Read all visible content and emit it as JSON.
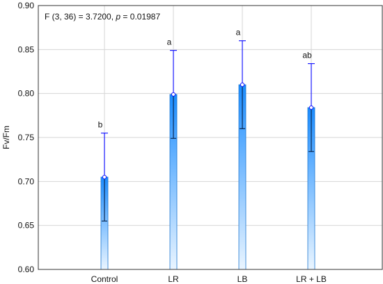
{
  "chart_data": {
    "type": "bar",
    "ylabel": "Fv/Fm",
    "xlabel": "",
    "ylim": [
      0.6,
      0.9
    ],
    "yticks": [
      0.6,
      0.65,
      0.7,
      0.75,
      0.8,
      0.85,
      0.9
    ],
    "ytick_labels": [
      "0.60",
      "0.65",
      "0.70",
      "0.75",
      "0.80",
      "0.85",
      "0.90"
    ],
    "categories": [
      "Control",
      "LR",
      "LB",
      "LR + LB"
    ],
    "values": [
      0.705,
      0.799,
      0.81,
      0.784
    ],
    "inner_lower": [
      0.655,
      0.749,
      0.76,
      0.734
    ],
    "error_upper": [
      0.755,
      0.849,
      0.86,
      0.834
    ],
    "letters": [
      "b",
      "a",
      "a",
      "ab"
    ],
    "grid": true,
    "colors": {
      "bar_top": "#1a8cff",
      "bar_bottom": "#eaf5ff",
      "bar_edge": "#1f77d0",
      "error": "#1a1aff",
      "inner_whisker": "#0a2a55"
    },
    "annotation": {
      "prefix": "F (3, 36) = 3.7200, ",
      "p_symbol": "p",
      "suffix": " = 0.01987"
    }
  }
}
